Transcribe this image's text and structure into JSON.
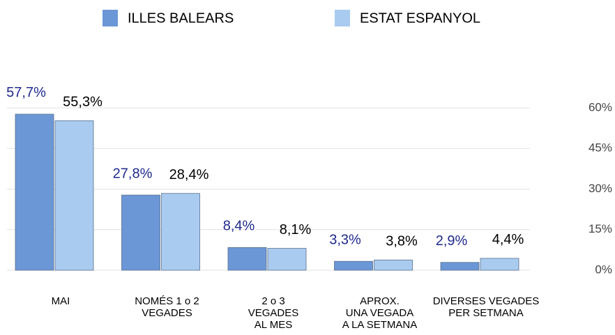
{
  "chart_data": {
    "type": "bar",
    "categories": [
      "MAI",
      "NOMÉS 1 o 2\nVEGADES",
      "2 o 3\nVEGADES\nAL MES",
      "APROX.\nUNA VEGADA\nA LA SETMANA",
      "DIVERSES VEGADES\nPER SETMANA"
    ],
    "series": [
      {
        "name": "ILLES BALEARS",
        "color": "#6b97d6",
        "label_color": "#1f2a8c",
        "values": [
          57.7,
          27.8,
          8.4,
          3.3,
          2.9
        ],
        "value_labels": [
          "57,7%",
          "27,8%",
          "8,4%",
          "3,3%",
          "2,9%"
        ]
      },
      {
        "name": "ESTAT ESPANYOL",
        "color": "#a9cbf0",
        "label_color": "#000000",
        "values": [
          55.3,
          28.4,
          8.1,
          3.8,
          4.4
        ],
        "value_labels": [
          "55,3%",
          "28,4%",
          "8,1%",
          "3,8%",
          "4,4%"
        ]
      }
    ],
    "ylim": [
      0,
      60
    ],
    "yticks": [
      {
        "value": 0,
        "label": "0%"
      },
      {
        "value": 15,
        "label": "15%"
      },
      {
        "value": 30,
        "label": "30%"
      },
      {
        "value": 45,
        "label": "45%"
      },
      {
        "value": 60,
        "label": "60%"
      }
    ],
    "grid": true
  }
}
